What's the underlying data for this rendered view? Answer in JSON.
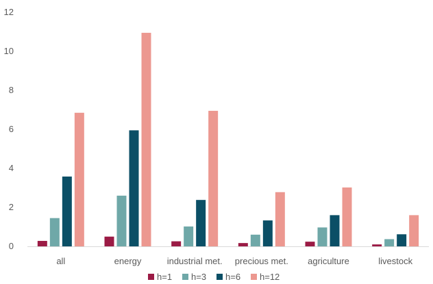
{
  "chart_data": {
    "type": "bar",
    "title": "",
    "xlabel": "",
    "ylabel": "",
    "ylim": [
      0,
      12
    ],
    "yticks": [
      0,
      2,
      4,
      6,
      8,
      10,
      12
    ],
    "grid": false,
    "legend_position": "bottom",
    "categories": [
      "all",
      "energy",
      "industrial met.",
      "precious met.",
      "agriculture",
      "livestock"
    ],
    "series": [
      {
        "name": "h=1",
        "color": "#9B1B45",
        "values": [
          0.28,
          0.5,
          0.26,
          0.17,
          0.24,
          0.1
        ]
      },
      {
        "name": "h=3",
        "color": "#6FA8A8",
        "values": [
          1.45,
          2.6,
          1.02,
          0.6,
          0.97,
          0.37
        ]
      },
      {
        "name": "h=6",
        "color": "#0B4F66",
        "values": [
          3.58,
          5.95,
          2.38,
          1.33,
          1.6,
          0.62
        ]
      },
      {
        "name": "h=12",
        "color": "#EC9890",
        "values": [
          6.85,
          10.95,
          6.95,
          2.78,
          3.02,
          1.6
        ]
      }
    ]
  }
}
